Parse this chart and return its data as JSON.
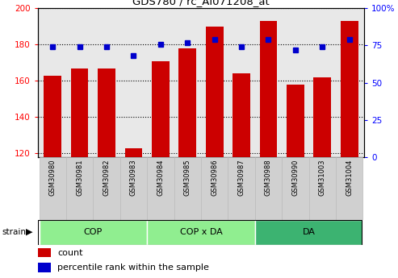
{
  "title": "GDS780 / rc_AI071208_at",
  "samples": [
    "GSM30980",
    "GSM30981",
    "GSM30982",
    "GSM30983",
    "GSM30984",
    "GSM30985",
    "GSM30986",
    "GSM30987",
    "GSM30988",
    "GSM30990",
    "GSM31003",
    "GSM31004"
  ],
  "count_values": [
    163,
    167,
    167,
    123,
    171,
    178,
    190,
    164,
    193,
    158,
    162,
    193
  ],
  "percentile_values": [
    74,
    74,
    74,
    68,
    76,
    77,
    79,
    74,
    79,
    72,
    74,
    79
  ],
  "groups": [
    {
      "label": "COP",
      "start": 0,
      "end": 4,
      "color": "#90EE90"
    },
    {
      "label": "COP x DA",
      "start": 4,
      "end": 8,
      "color": "#90EE90"
    },
    {
      "label": "DA",
      "start": 8,
      "end": 12,
      "color": "#3CB371"
    }
  ],
  "ylim_left": [
    118,
    200
  ],
  "ylim_right": [
    0,
    100
  ],
  "yticks_left": [
    120,
    140,
    160,
    180,
    200
  ],
  "yticks_right": [
    0,
    25,
    50,
    75,
    100
  ],
  "bar_color": "#CC0000",
  "dot_color": "#0000CC",
  "bar_width": 0.65,
  "plot_bg": "#e8e8e8",
  "label_bg": "#d0d0d0",
  "legend_count_label": "count",
  "legend_pct_label": "percentile rank within the sample",
  "strain_label": "strain",
  "cop_color": "#aaffaa",
  "copda_color": "#aaffaa",
  "da_color": "#44cc44"
}
